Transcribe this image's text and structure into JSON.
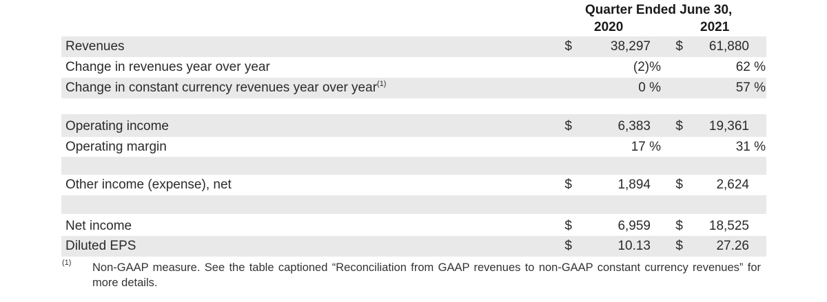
{
  "header": {
    "title": "Quarter Ended June 30,",
    "col1_year": "2020",
    "col2_year": "2021"
  },
  "rows": [
    {
      "label": "Revenues",
      "sup": "",
      "cur1": "$",
      "val1": "38,297",
      "cur2": "$",
      "val2": "61,880"
    },
    {
      "label": "Change in revenues year over year",
      "sup": "",
      "cur1": "",
      "val1": "(2)%",
      "cur2": "",
      "val2": "62 %"
    },
    {
      "label": "Change in constant currency revenues year over year",
      "sup": "(1)",
      "cur1": "",
      "val1": "0 %",
      "cur2": "",
      "val2": "57 %"
    },
    {
      "label": "Operating income",
      "sup": "",
      "cur1": "$",
      "val1": "6,383",
      "cur2": "$",
      "val2": "19,361"
    },
    {
      "label": "Operating margin",
      "sup": "",
      "cur1": "",
      "val1": "17 %",
      "cur2": "",
      "val2": "31 %"
    },
    {
      "label": "Other income (expense), net",
      "sup": "",
      "cur1": "$",
      "val1": "1,894",
      "cur2": "$",
      "val2": "2,624"
    },
    {
      "label": "Net income",
      "sup": "",
      "cur1": "$",
      "val1": "6,959",
      "cur2": "$",
      "val2": "18,525"
    },
    {
      "label": "Diluted EPS",
      "sup": "",
      "cur1": "$",
      "val1": "10.13",
      "cur2": "$",
      "val2": "27.26"
    }
  ],
  "footnote": {
    "marker": "(1)",
    "text": "Non-GAAP measure. See the table captioned “Reconciliation from GAAP revenues to non-GAAP constant currency revenues” for more details."
  }
}
